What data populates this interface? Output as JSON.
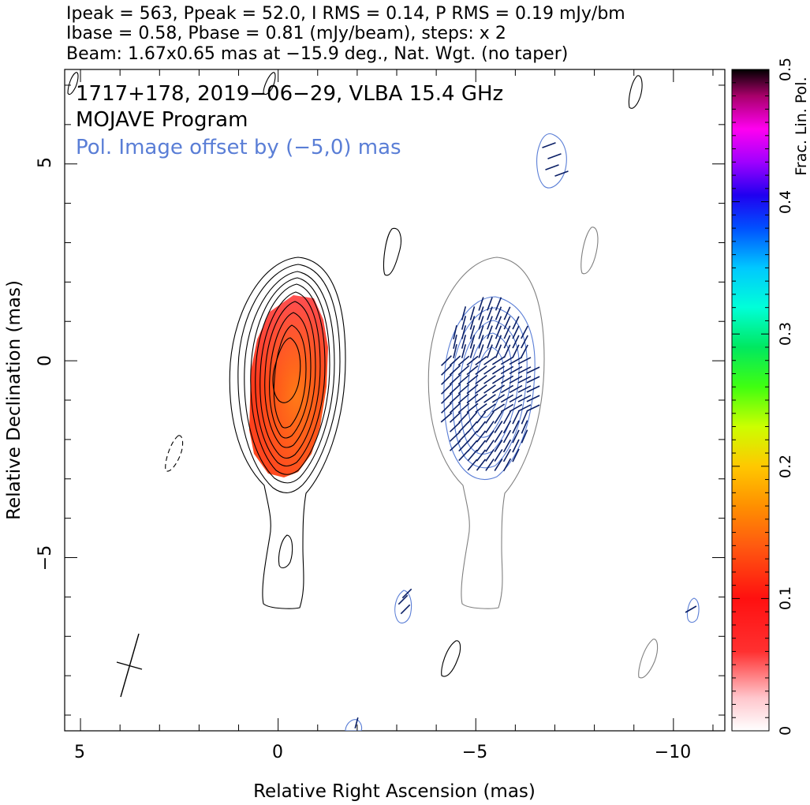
{
  "header": {
    "line1": "Ipeak = 563, Ppeak = 52.0, I RMS = 0.14, P RMS = 0.19 mJy/bm",
    "line2": "Ibase = 0.58, Pbase = 0.81 (mJy/beam), steps: x 2",
    "line3": "Beam: 1.67x0.65 mas at −15.9 deg., Nat. Wgt. (no taper)"
  },
  "annotations": {
    "source": "1717+178, 2019−06−29, VLBA 15.4 GHz",
    "program": "MOJAVE Program",
    "pol_offset": "Pol. Image offset by (−5,0) mas"
  },
  "colors": {
    "total_intensity_contour": "#000000",
    "pol_offset_contour": "#808080",
    "pol_intensity_contour": "#5a7ed6",
    "evpa_tick": "#0a1f66",
    "offset_label": "#5a7ed6"
  },
  "chart_data": {
    "type": "heatmap",
    "title": "1717+178, 2019−06−29, VLBA 15.4 GHz",
    "xlabel": "Relative Right Ascension (mas)",
    "ylabel": "Relative Declination (mas)",
    "xlim": [
      5.4,
      -11.3
    ],
    "ylim": [
      -9.4,
      7.4
    ],
    "x_axis_reversed": true,
    "xticks": [
      5,
      0,
      -5,
      -10
    ],
    "xtick_labels": [
      "5",
      "0",
      "−5",
      "−10"
    ],
    "yticks": [
      5,
      0,
      -5
    ],
    "ytick_labels": [
      "5",
      "0",
      "−5"
    ],
    "colorbar": {
      "label": "Frac. Lin. Pol.",
      "range": [
        0,
        0.5
      ],
      "ticks": [
        0,
        0.1,
        0.2,
        0.3,
        0.4,
        0.5
      ],
      "tick_labels": [
        "0",
        "0.1",
        "0.2",
        "0.3",
        "0.4",
        "0.5"
      ]
    },
    "stats": {
      "Ipeak_mJy_per_beam": 563,
      "Ppeak_mJy_per_beam": 52.0,
      "I_RMS_mJy_per_beam": 0.14,
      "P_RMS_mJy_per_beam": 0.19,
      "Ibase_mJy_per_beam": 0.58,
      "Pbase_mJy_per_beam": 0.81,
      "contour_step_factor": 2
    },
    "beam": {
      "major_mas": 1.67,
      "minor_mas": 0.65,
      "pa_deg": -15.9
    },
    "pol_image_offset_mas": [
      -5,
      0
    ],
    "frac_pol_core_range": [
      0.05,
      0.13
    ]
  }
}
